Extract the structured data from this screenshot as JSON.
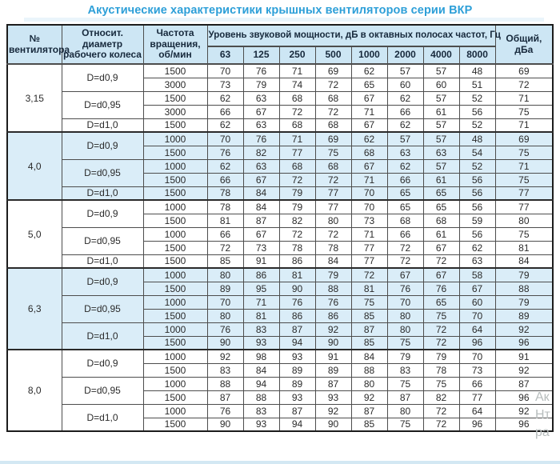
{
  "title": "Акустические характеристики крышных вентиляторов серии ВКР",
  "colors": {
    "title_accent": "#2d9fd8",
    "header_bg": "#cde6f4",
    "shaded_row_bg": "#daedf8",
    "border": "#4d4d4d",
    "text": "#2b2b2b"
  },
  "table": {
    "headers": {
      "fan": "№ вентилятора",
      "diameter": "Относит. диаметр рабочего колеса",
      "speed": "Частота вращения, об/мин",
      "span": "Уровень звуковой мощности, дБ в октавных полосах частот, Гц",
      "frequencies": [
        "63",
        "125",
        "250",
        "500",
        "1000",
        "2000",
        "4000",
        "8000"
      ],
      "total": "Общий, дБа"
    },
    "groups": [
      {
        "fan": "3,15",
        "shaded": false,
        "diameters": [
          {
            "label": "D=d0,9",
            "rows": [
              {
                "rpm": "1500",
                "levels": [
                  70,
                  76,
                  71,
                  69,
                  62,
                  57,
                  57,
                  48
                ],
                "total": 69
              },
              {
                "rpm": "3000",
                "levels": [
                  73,
                  79,
                  74,
                  72,
                  65,
                  60,
                  60,
                  51
                ],
                "total": 72
              }
            ]
          },
          {
            "label": "D=d0,95",
            "rows": [
              {
                "rpm": "1500",
                "levels": [
                  62,
                  63,
                  68,
                  68,
                  67,
                  62,
                  57,
                  52
                ],
                "total": 71
              },
              {
                "rpm": "3000",
                "levels": [
                  66,
                  67,
                  72,
                  72,
                  71,
                  66,
                  61,
                  56
                ],
                "total": 75
              }
            ]
          },
          {
            "label": "D=d1,0",
            "rows": [
              {
                "rpm": "1500",
                "levels": [
                  62,
                  63,
                  68,
                  68,
                  67,
                  62,
                  57,
                  52
                ],
                "total": 71
              }
            ]
          }
        ]
      },
      {
        "fan": "4,0",
        "shaded": true,
        "diameters": [
          {
            "label": "D=d0,9",
            "rows": [
              {
                "rpm": "1000",
                "levels": [
                  70,
                  76,
                  71,
                  69,
                  62,
                  57,
                  57,
                  48
                ],
                "total": 69
              },
              {
                "rpm": "1500",
                "levels": [
                  76,
                  82,
                  77,
                  75,
                  68,
                  63,
                  63,
                  54
                ],
                "total": 75
              }
            ]
          },
          {
            "label": "D=d0,95",
            "rows": [
              {
                "rpm": "1000",
                "levels": [
                  62,
                  63,
                  68,
                  68,
                  67,
                  62,
                  57,
                  52
                ],
                "total": 71
              },
              {
                "rpm": "1500",
                "levels": [
                  66,
                  67,
                  72,
                  72,
                  71,
                  66,
                  61,
                  56
                ],
                "total": 75
              }
            ]
          },
          {
            "label": "D=d1,0",
            "rows": [
              {
                "rpm": "1500",
                "levels": [
                  78,
                  84,
                  79,
                  77,
                  70,
                  65,
                  65,
                  56
                ],
                "total": 77
              }
            ]
          }
        ]
      },
      {
        "fan": "5,0",
        "shaded": false,
        "diameters": [
          {
            "label": "D=d0,9",
            "rows": [
              {
                "rpm": "1000",
                "levels": [
                  78,
                  84,
                  79,
                  77,
                  70,
                  65,
                  65,
                  56
                ],
                "total": 77
              },
              {
                "rpm": "1500",
                "levels": [
                  81,
                  87,
                  82,
                  80,
                  73,
                  68,
                  68,
                  59
                ],
                "total": 80
              }
            ]
          },
          {
            "label": "D=d0,95",
            "rows": [
              {
                "rpm": "1000",
                "levels": [
                  66,
                  67,
                  72,
                  72,
                  71,
                  66,
                  61,
                  56
                ],
                "total": 75
              },
              {
                "rpm": "1500",
                "levels": [
                  72,
                  73,
                  78,
                  78,
                  77,
                  72,
                  67,
                  62
                ],
                "total": 81
              }
            ]
          },
          {
            "label": "D=d1,0",
            "rows": [
              {
                "rpm": "1500",
                "levels": [
                  85,
                  91,
                  86,
                  84,
                  77,
                  72,
                  72,
                  63
                ],
                "total": 84
              }
            ]
          }
        ]
      },
      {
        "fan": "6,3",
        "shaded": true,
        "diameters": [
          {
            "label": "D=d0,9",
            "rows": [
              {
                "rpm": "1000",
                "levels": [
                  80,
                  86,
                  81,
                  79,
                  72,
                  67,
                  67,
                  58
                ],
                "total": 79
              },
              {
                "rpm": "1500",
                "levels": [
                  89,
                  95,
                  90,
                  88,
                  81,
                  76,
                  76,
                  67
                ],
                "total": 88
              }
            ]
          },
          {
            "label": "D=d0,95",
            "rows": [
              {
                "rpm": "1000",
                "levels": [
                  70,
                  71,
                  76,
                  76,
                  75,
                  70,
                  65,
                  60
                ],
                "total": 79
              },
              {
                "rpm": "1500",
                "levels": [
                  80,
                  81,
                  86,
                  86,
                  85,
                  80,
                  75,
                  70
                ],
                "total": 89
              }
            ]
          },
          {
            "label": "D=d1,0",
            "rows": [
              {
                "rpm": "1000",
                "levels": [
                  76,
                  83,
                  87,
                  92,
                  87,
                  80,
                  72,
                  64
                ],
                "total": 92
              },
              {
                "rpm": "1500",
                "levels": [
                  90,
                  93,
                  94,
                  90,
                  85,
                  75,
                  72,
                  96
                ],
                "total": 96
              }
            ]
          }
        ]
      },
      {
        "fan": "8,0",
        "shaded": false,
        "diameters": [
          {
            "label": "D=d0,9",
            "rows": [
              {
                "rpm": "1000",
                "levels": [
                  92,
                  98,
                  93,
                  91,
                  84,
                  79,
                  79,
                  70
                ],
                "total": 91
              },
              {
                "rpm": "1500",
                "levels": [
                  83,
                  84,
                  89,
                  89,
                  88,
                  83,
                  78,
                  73
                ],
                "total": 92
              }
            ]
          },
          {
            "label": "D=d0,95",
            "rows": [
              {
                "rpm": "1000",
                "levels": [
                  88,
                  94,
                  89,
                  87,
                  80,
                  75,
                  75,
                  66
                ],
                "total": 87
              },
              {
                "rpm": "1500",
                "levels": [
                  87,
                  88,
                  93,
                  93,
                  92,
                  87,
                  82,
                  77
                ],
                "total": 96
              }
            ]
          },
          {
            "label": "D=d1,0",
            "rows": [
              {
                "rpm": "1000",
                "levels": [
                  76,
                  83,
                  87,
                  92,
                  87,
                  80,
                  72,
                  64
                ],
                "total": 92
              },
              {
                "rpm": "1500",
                "levels": [
                  90,
                  93,
                  94,
                  90,
                  85,
                  75,
                  72,
                  96
                ],
                "total": 96
              }
            ]
          }
        ]
      }
    ]
  },
  "watermark": [
    "Ак",
    "Нт",
    "ра"
  ]
}
